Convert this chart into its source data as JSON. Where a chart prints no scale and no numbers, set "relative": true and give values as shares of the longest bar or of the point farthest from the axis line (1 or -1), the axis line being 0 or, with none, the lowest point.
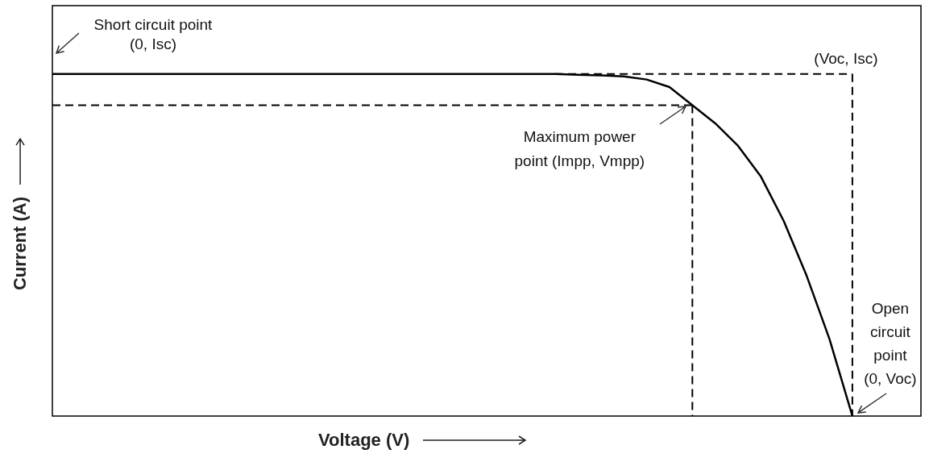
{
  "chart_data": {
    "type": "line",
    "relative": true,
    "xlabel": "Voltage (V)",
    "ylabel": "Current (A)",
    "legend": false,
    "marker": "none",
    "categories": [
      null,
      null,
      null,
      null,
      null,
      null,
      null,
      null,
      null,
      null,
      null,
      null,
      null,
      null,
      null,
      null,
      null,
      null,
      null,
      null,
      null,
      null,
      null,
      null,
      null,
      null,
      null,
      null,
      null,
      null,
      null,
      null,
      null,
      null,
      null,
      null,
      null,
      null,
      null
    ],
    "series": [
      {
        "color": "#000000",
        "line_style": "solid",
        "values": [
          1,
          1,
          1,
          1,
          1,
          1,
          1,
          1,
          1,
          1,
          1,
          1,
          1,
          1,
          1,
          1,
          1,
          1,
          1,
          1,
          1,
          1,
          1,
          0.998,
          0.996,
          0.993,
          0.984,
          0.962,
          0.909,
          0.856,
          0.79,
          0.7,
          0.57,
          0.41,
          0.225,
          0,
          null,
          null,
          null
        ]
      },
      {
        "color": "#000000",
        "line_style": "dashed",
        "values": [
          0.909,
          0.909,
          0.909,
          0.909,
          0.909,
          0.909,
          0.909,
          0.909,
          0.909,
          0.909,
          0.909,
          0.909,
          0.909,
          0.909,
          0.909,
          0.909,
          0.909,
          0.909,
          0.909,
          0.909,
          0.909,
          0.909,
          0.909,
          0.909,
          0.909,
          0.909,
          0.909,
          0.909,
          0.909,
          null,
          null,
          null,
          null,
          null,
          null,
          null,
          null,
          null,
          null
        ]
      },
      {
        "color": "#000000",
        "line_style": "dashed",
        "values": [
          null,
          null,
          null,
          null,
          null,
          null,
          null,
          null,
          null,
          null,
          null,
          null,
          null,
          null,
          null,
          null,
          null,
          null,
          null,
          null,
          null,
          null,
          1,
          1,
          1,
          1,
          1,
          1,
          1,
          1,
          1,
          1,
          1,
          1,
          1,
          1,
          null,
          null,
          null
        ]
      }
    ],
    "annotations": [
      "Short circuit point\n(0, Isc)",
      "(Voc, Isc)",
      "Maximum power\npoint (Impp, Vmpp)",
      "Open\ncircuit\npoint\n(0, Voc)"
    ]
  }
}
